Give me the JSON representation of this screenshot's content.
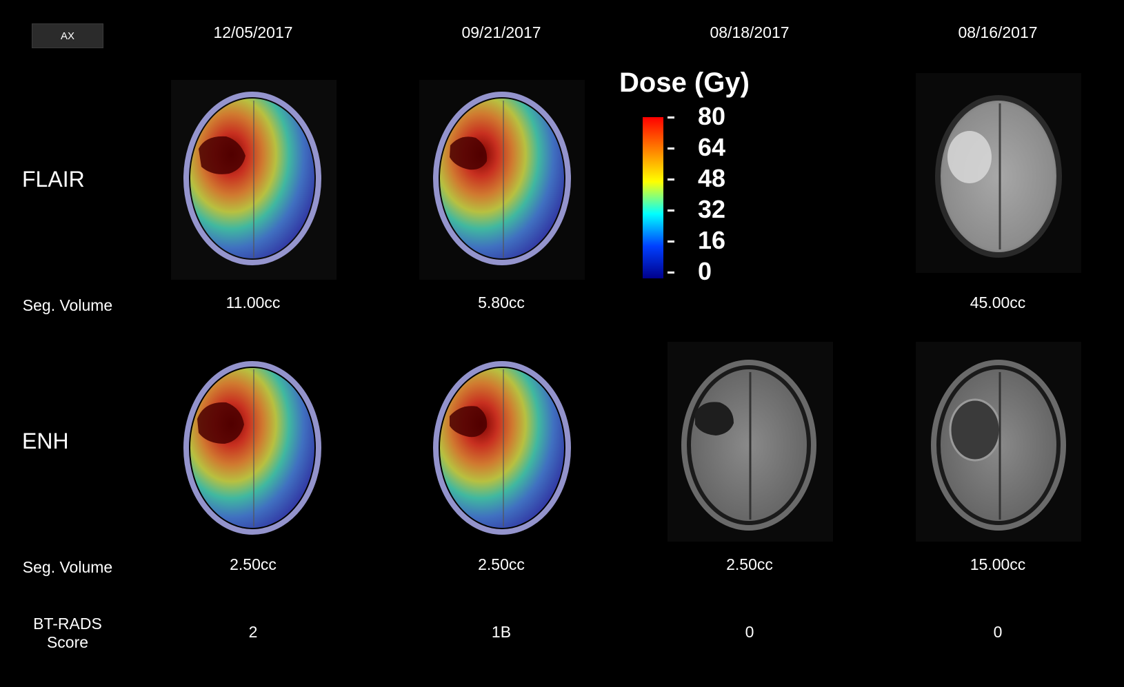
{
  "toolbar": {
    "view_label": "AX"
  },
  "dates": [
    "12/05/2017",
    "09/21/2017",
    "08/18/2017",
    "08/16/2017"
  ],
  "rows": {
    "flair": {
      "label": "FLAIR",
      "seg_label": "Seg. Volume",
      "volumes": [
        "11.00cc",
        "5.80cc",
        "",
        "45.00cc"
      ]
    },
    "enh": {
      "label": "ENH",
      "seg_label": "Seg. Volume",
      "volumes": [
        "2.50cc",
        "2.50cc",
        "2.50cc",
        "15.00cc"
      ]
    }
  },
  "btrads": {
    "label_line1": "BT-RADS",
    "label_line2": "Score",
    "scores": [
      "2",
      "1B",
      "0",
      "0"
    ]
  },
  "dose_legend": {
    "title": "Dose (Gy)",
    "ticks": [
      "80",
      "64",
      "48",
      "32",
      "16",
      "0"
    ],
    "colors": [
      "#ff0000",
      "#ff8000",
      "#ffff00",
      "#00ffff",
      "#0040ff",
      "#00008b"
    ]
  }
}
